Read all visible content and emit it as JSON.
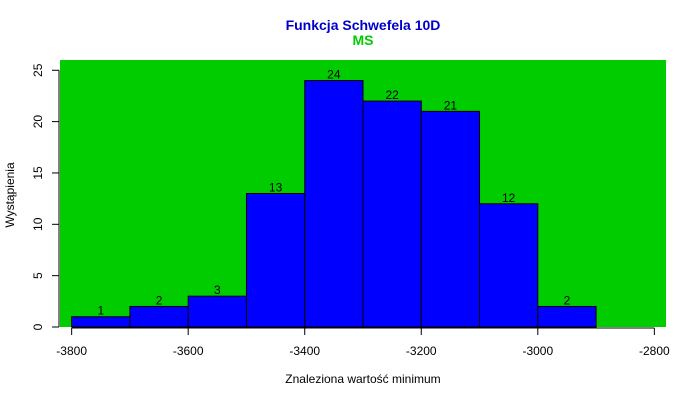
{
  "chart_data": {
    "type": "bar",
    "title": "Funkcja Schwefela 10D",
    "subtitle": "MS",
    "xlabel": "Znaleziona wartość minimum",
    "ylabel": "Wystąpienia",
    "xlim": [
      -3820,
      -2780
    ],
    "ylim": [
      0,
      26
    ],
    "x_ticks": [
      -3800,
      -3600,
      -3400,
      -3200,
      -3000,
      -2800
    ],
    "y_ticks": [
      0,
      5,
      10,
      15,
      20,
      25
    ],
    "bins": [
      {
        "start": -3800,
        "end": -3700,
        "count": 1
      },
      {
        "start": -3700,
        "end": -3600,
        "count": 2
      },
      {
        "start": -3600,
        "end": -3500,
        "count": 3
      },
      {
        "start": -3500,
        "end": -3400,
        "count": 13
      },
      {
        "start": -3400,
        "end": -3300,
        "count": 24
      },
      {
        "start": -3300,
        "end": -3200,
        "count": 22
      },
      {
        "start": -3200,
        "end": -3100,
        "count": 21
      },
      {
        "start": -3100,
        "end": -3000,
        "count": 12
      },
      {
        "start": -3000,
        "end": -2900,
        "count": 2
      }
    ],
    "grid": false,
    "colors": {
      "background": "#00cc00",
      "bar_fill": "#0000ff",
      "bar_stroke": "#000000",
      "title": "#0000cc",
      "subtitle": "#00cc00"
    }
  }
}
